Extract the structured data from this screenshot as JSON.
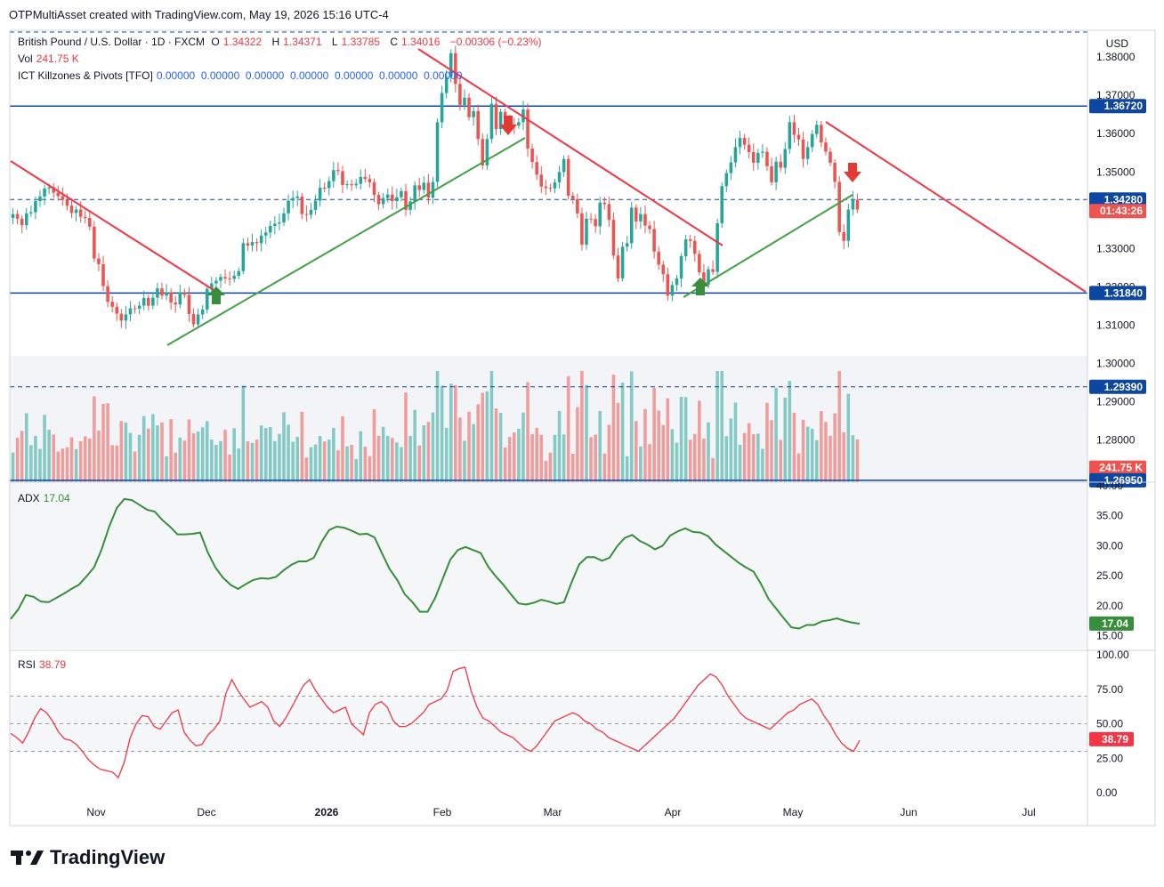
{
  "header": {
    "caption": "OTPMultiAsset created with TradingView.com, May 19, 2026 15:16 UTC-4"
  },
  "legend": {
    "symbol": "British Pound / U.S. Dollar · 1D · FXCM",
    "o_label": "O",
    "o": "1.34322",
    "h_label": "H",
    "h": "1.34371",
    "l_label": "L",
    "l": "1.33785",
    "c_label": "C",
    "c": "1.34016",
    "change": "−0.00306 (−0.23%)",
    "vol_label": "Vol",
    "vol": "241.75 K",
    "ict_label": "ICT Killzones & Pivots [TFO]",
    "ict_values": "0.00000  0.00000  0.00000  0.00000  0.00000  0.00000  0.00000",
    "adx_label": "ADX",
    "adx": "17.04",
    "rsi_label": "RSI",
    "rsi": "38.79"
  },
  "price_axis": {
    "currency": "USD",
    "ticks": [
      "1.38000",
      "1.37000",
      "1.36000",
      "1.35000",
      "1.34000",
      "1.33000",
      "1.32000",
      "1.31000",
      "1.30000",
      "1.29000",
      "1.28000"
    ],
    "tags": [
      {
        "value": "1.36720",
        "kind": "level"
      },
      {
        "value": "1.34280",
        "kind": "level"
      },
      {
        "value": "01:43:26",
        "kind": "countdown"
      },
      {
        "value": "1.31840",
        "kind": "level"
      },
      {
        "value": "1.29390",
        "kind": "level"
      },
      {
        "value": "241.75 K",
        "kind": "volume"
      },
      {
        "value": "1.26950",
        "kind": "level"
      }
    ]
  },
  "adx_axis": {
    "ticks": [
      "40.00",
      "35.00",
      "30.00",
      "25.00",
      "20.00",
      "15.00"
    ],
    "tag": "17.04"
  },
  "rsi_axis": {
    "ticks": [
      "100.00",
      "75.00",
      "50.00",
      "25.00",
      "0.00"
    ],
    "tag": "38.79"
  },
  "time_axis": {
    "labels": [
      "Nov",
      "Dec",
      "2026",
      "Feb",
      "Mar",
      "Apr",
      "May",
      "Jun",
      "Jul"
    ]
  },
  "brand": {
    "name": "TradingView"
  },
  "colors": {
    "up": "#26a69a",
    "down": "#ef5350",
    "adx": "#388e3c",
    "rsi": "#f23645",
    "level": "#0d47a1",
    "trend_down": "#f23645",
    "trend_up": "#43a047"
  },
  "chart_data": {
    "type": "candlestick",
    "symbol": "GBPUSD",
    "timeframe": "1D",
    "price_range": [
      1.269,
      1.387
    ],
    "levels": [
      1.3672,
      1.3428,
      1.3184,
      1.2939,
      1.2695
    ],
    "candles_close": [
      1.339,
      1.3378,
      1.3361,
      1.3392,
      1.3395,
      1.3424,
      1.3436,
      1.3457,
      1.346,
      1.3446,
      1.3437,
      1.3427,
      1.3412,
      1.3393,
      1.3402,
      1.3383,
      1.338,
      1.3357,
      1.3274,
      1.3259,
      1.3202,
      1.3161,
      1.3148,
      1.313,
      1.3112,
      1.3128,
      1.3144,
      1.3143,
      1.3151,
      1.3171,
      1.3151,
      1.3172,
      1.3196,
      1.3177,
      1.3186,
      1.3159,
      1.3154,
      1.3186,
      1.3179,
      1.3129,
      1.3102,
      1.3128,
      1.3141,
      1.3195,
      1.3209,
      1.3216,
      1.3226,
      1.3222,
      1.3221,
      1.3229,
      1.3241,
      1.3314,
      1.3308,
      1.3317,
      1.3314,
      1.3334,
      1.3342,
      1.3359,
      1.3365,
      1.3368,
      1.3392,
      1.3425,
      1.3432,
      1.3436,
      1.339,
      1.3388,
      1.3401,
      1.3425,
      1.3459,
      1.3458,
      1.3476,
      1.3505,
      1.3502,
      1.3466,
      1.3468,
      1.3465,
      1.3469,
      1.3487,
      1.3482,
      1.3473,
      1.344,
      1.3416,
      1.3432,
      1.3441,
      1.3424,
      1.3434,
      1.345,
      1.3401,
      1.3423,
      1.3465,
      1.3453,
      1.3472,
      1.3433,
      1.3474,
      1.363,
      1.3706,
      1.3748,
      1.381,
      1.373,
      1.3675,
      1.3694,
      1.3643,
      1.3659,
      1.3586,
      1.3517,
      1.3586,
      1.3678,
      1.3612,
      1.3657,
      1.364,
      1.3624,
      1.3621,
      1.363,
      1.3663,
      1.3561,
      1.3526,
      1.3493,
      1.3462,
      1.3458,
      1.3457,
      1.3473,
      1.35,
      1.3534,
      1.3438,
      1.3429,
      1.3392,
      1.331,
      1.3378,
      1.3377,
      1.3358,
      1.342,
      1.3416,
      1.3375,
      1.3282,
      1.3222,
      1.3305,
      1.3314,
      1.3407,
      1.3371,
      1.339,
      1.336,
      1.3351,
      1.3292,
      1.3258,
      1.3233,
      1.3177,
      1.3205,
      1.3222,
      1.328,
      1.3324,
      1.332,
      1.3286,
      1.3238,
      1.3206,
      1.3246,
      1.3239,
      1.3366,
      1.3463,
      1.3497,
      1.3525,
      1.3565,
      1.3589,
      1.3571,
      1.3552,
      1.3524,
      1.355,
      1.3553,
      1.3515,
      1.3473,
      1.3527,
      1.3511,
      1.356,
      1.363,
      1.3597,
      1.3585,
      1.3534,
      1.3565,
      1.3599,
      1.3623,
      1.3577,
      1.3553,
      1.3524,
      1.3474,
      1.3343,
      1.332,
      1.3402,
      1.3428,
      1.3402
    ],
    "volume_note": "Vol 241.75 K",
    "adx": [
      17.8,
      19.4,
      21.8,
      21.5,
      20.7,
      20.6,
      21.3,
      22.0,
      22.8,
      23.5,
      24.9,
      26.4,
      29.4,
      33.2,
      36.3,
      37.8,
      37.6,
      36.8,
      36.0,
      35.7,
      34.3,
      33.2,
      31.9,
      31.9,
      32.0,
      32.2,
      28.9,
      26.4,
      24.7,
      23.5,
      22.8,
      23.6,
      24.3,
      24.6,
      24.5,
      24.8,
      25.9,
      26.8,
      27.4,
      27.4,
      28.0,
      30.6,
      32.6,
      33.2,
      33.0,
      32.5,
      31.9,
      32.0,
      31.4,
      28.7,
      26.1,
      24.3,
      21.9,
      20.6,
      19.0,
      19.0,
      21.3,
      24.5,
      27.7,
      29.3,
      29.8,
      29.3,
      28.8,
      26.5,
      24.9,
      23.5,
      21.9,
      20.4,
      20.2,
      20.5,
      21.0,
      20.7,
      20.3,
      20.6,
      23.9,
      26.9,
      28.1,
      28.1,
      27.5,
      28.0,
      29.9,
      31.3,
      31.8,
      30.8,
      30.2,
      29.4,
      30.0,
      31.7,
      32.4,
      32.9,
      32.3,
      32.2,
      31.6,
      30.2,
      29.2,
      28.2,
      27.2,
      26.4,
      25.7,
      23.6,
      21.1,
      19.5,
      17.9,
      16.4,
      16.2,
      16.8,
      16.8,
      17.4,
      17.6,
      17.9,
      17.5,
      17.2,
      17.0
    ],
    "rsi": [
      43,
      40,
      36,
      44,
      54,
      61,
      58,
      52,
      44,
      39,
      38,
      35,
      30,
      24,
      20,
      17,
      16,
      15,
      11,
      22,
      40,
      50,
      56,
      55,
      48,
      46,
      52,
      58,
      60,
      44,
      38,
      34,
      35,
      42,
      46,
      52,
      72,
      82,
      74,
      68,
      62,
      64,
      66,
      62,
      52,
      48,
      54,
      62,
      70,
      78,
      82,
      74,
      68,
      62,
      58,
      60,
      62,
      50,
      46,
      42,
      58,
      64,
      66,
      62,
      52,
      48,
      48,
      50,
      54,
      58,
      64,
      66,
      68,
      74,
      88,
      90,
      91,
      74,
      62,
      54,
      52,
      48,
      44,
      42,
      40,
      36,
      32,
      30,
      34,
      40,
      46,
      52,
      54,
      56,
      58,
      56,
      52,
      50,
      46,
      44,
      40,
      38,
      36,
      34,
      32,
      30,
      34,
      38,
      42,
      46,
      50,
      54,
      60,
      66,
      72,
      78,
      82,
      86,
      84,
      78,
      70,
      64,
      58,
      54,
      52,
      50,
      48,
      46,
      50,
      54,
      58,
      60,
      64,
      66,
      68,
      64,
      56,
      50,
      42,
      36,
      32,
      30,
      38
    ]
  }
}
